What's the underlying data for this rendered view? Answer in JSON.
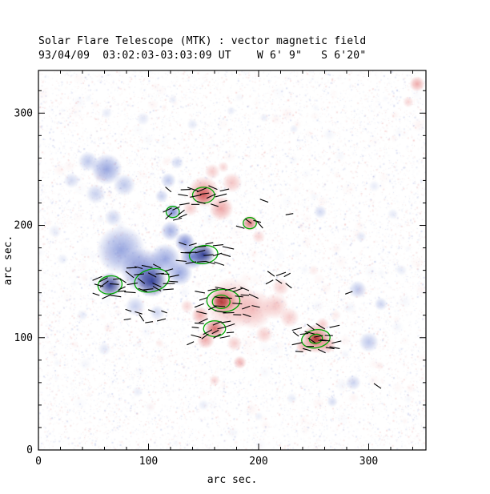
{
  "chart_data": {
    "type": "heatmap",
    "title": "Solar Flare Telescope (MTK) : vector magnetic field",
    "subtitle": "93/04/09  03:02:03-03:03:09 UT    W 6' 9\"   S 6'20\"",
    "xlabel": "arc sec.",
    "ylabel": "arc sec.",
    "x_range": [
      0,
      352
    ],
    "y_range": [
      0,
      338
    ],
    "x_ticks": [
      0,
      100,
      200,
      300
    ],
    "y_ticks": [
      0,
      100,
      200,
      300
    ],
    "minor_tick_step": 20,
    "units": "arc sec",
    "palette": {
      "blue_levels": [
        "#c6cfee",
        "#a3b1e4",
        "#7e90d8",
        "#4f63c4",
        "#27348e"
      ],
      "red_levels": [
        "#f5cccc",
        "#f0a9a9",
        "#e88888",
        "#d25252",
        "#a92b2b"
      ],
      "contour": "#00a800",
      "vector": "#000000",
      "frame": "#000000"
    },
    "region_format": "[x_arcsec, y_arcsec, radius_arcsec, level_index, alpha]",
    "blue_regions": [
      [
        62,
        250,
        14,
        2,
        0.8
      ],
      [
        45,
        257,
        9,
        1,
        0.7
      ],
      [
        78,
        236,
        10,
        1,
        0.7
      ],
      [
        52,
        228,
        9,
        1,
        0.6
      ],
      [
        30,
        240,
        7,
        1,
        0.5
      ],
      [
        68,
        207,
        8,
        1,
        0.55
      ],
      [
        126,
        256,
        6,
        1,
        0.5
      ],
      [
        75,
        178,
        22,
        2,
        0.8
      ],
      [
        95,
        160,
        20,
        3,
        0.75
      ],
      [
        65,
        147,
        11,
        4,
        0.9
      ],
      [
        103,
        150,
        14,
        4,
        0.9
      ],
      [
        115,
        170,
        14,
        2,
        0.8
      ],
      [
        128,
        158,
        12,
        2,
        0.8
      ],
      [
        133,
        185,
        9,
        3,
        0.75
      ],
      [
        140,
        172,
        11,
        3,
        0.8
      ],
      [
        150,
        174,
        10,
        4,
        0.95
      ],
      [
        120,
        195,
        9,
        2,
        0.7
      ],
      [
        122,
        212,
        7,
        3,
        0.75
      ],
      [
        118,
        240,
        7,
        1,
        0.7
      ],
      [
        112,
        226,
        6,
        1,
        0.6
      ],
      [
        88,
        128,
        9,
        1,
        0.6
      ],
      [
        108,
        122,
        7,
        1,
        0.5
      ],
      [
        290,
        143,
        8,
        1,
        0.7
      ],
      [
        300,
        96,
        9,
        1,
        0.7
      ],
      [
        311,
        130,
        6,
        1,
        0.55
      ],
      [
        286,
        60,
        7,
        1,
        0.55
      ],
      [
        267,
        43,
        5,
        1,
        0.45
      ],
      [
        256,
        212,
        6,
        1,
        0.5
      ],
      [
        293,
        190,
        5,
        0,
        0.5
      ],
      [
        322,
        210,
        5,
        0,
        0.45
      ],
      [
        305,
        235,
        5,
        0,
        0.4
      ],
      [
        330,
        160,
        5,
        0,
        0.4
      ],
      [
        60,
        90,
        6,
        0,
        0.5
      ],
      [
        40,
        120,
        5,
        0,
        0.45
      ],
      [
        15,
        195,
        6,
        0,
        0.4
      ],
      [
        22,
        170,
        5,
        0,
        0.4
      ],
      [
        95,
        295,
        6,
        0,
        0.5
      ],
      [
        140,
        290,
        5,
        0,
        0.5
      ],
      [
        62,
        300,
        5,
        0,
        0.45
      ],
      [
        175,
        302,
        4,
        0,
        0.45
      ],
      [
        122,
        312,
        4,
        0,
        0.4
      ],
      [
        205,
        296,
        4,
        0,
        0.4
      ],
      [
        232,
        286,
        4,
        0,
        0.4
      ],
      [
        150,
        40,
        5,
        0,
        0.4
      ],
      [
        230,
        46,
        5,
        0,
        0.4
      ],
      [
        200,
        30,
        4,
        0,
        0.35
      ],
      [
        90,
        52,
        5,
        0,
        0.4
      ]
    ],
    "red_regions": [
      [
        150,
        230,
        14,
        2,
        0.8
      ],
      [
        150,
        227,
        9,
        3,
        0.85
      ],
      [
        166,
        215,
        11,
        2,
        0.75
      ],
      [
        176,
        238,
        9,
        1,
        0.7
      ],
      [
        138,
        215,
        7,
        1,
        0.6
      ],
      [
        158,
        248,
        7,
        1,
        0.6
      ],
      [
        168,
        252,
        5,
        1,
        0.5
      ],
      [
        192,
        202,
        7,
        3,
        0.8
      ],
      [
        200,
        190,
        6,
        1,
        0.5
      ],
      [
        175,
        130,
        24,
        1,
        0.75
      ],
      [
        195,
        125,
        18,
        1,
        0.75
      ],
      [
        168,
        133,
        12,
        3,
        0.8
      ],
      [
        166,
        132,
        7,
        4,
        0.8
      ],
      [
        147,
        120,
        8,
        2,
        0.7
      ],
      [
        135,
        128,
        6,
        1,
        0.5
      ],
      [
        160,
        108,
        9,
        3,
        0.85
      ],
      [
        152,
        98,
        8,
        2,
        0.7
      ],
      [
        183,
        78,
        6,
        2,
        0.65
      ],
      [
        178,
        95,
        7,
        1,
        0.6
      ],
      [
        205,
        103,
        8,
        1,
        0.6
      ],
      [
        215,
        128,
        12,
        1,
        0.65
      ],
      [
        228,
        118,
        9,
        1,
        0.6
      ],
      [
        220,
        145,
        8,
        1,
        0.55
      ],
      [
        252,
        99,
        13,
        3,
        0.85
      ],
      [
        252,
        99,
        6,
        4,
        0.85
      ],
      [
        262,
        94,
        8,
        2,
        0.65
      ],
      [
        258,
        112,
        6,
        1,
        0.6
      ],
      [
        240,
        92,
        6,
        2,
        0.6
      ],
      [
        160,
        62,
        5,
        1,
        0.5
      ],
      [
        344,
        326,
        7,
        2,
        0.7
      ],
      [
        336,
        310,
        5,
        1,
        0.5
      ],
      [
        110,
        95,
        4,
        0,
        0.4
      ],
      [
        250,
        160,
        5,
        0,
        0.4
      ],
      [
        270,
        120,
        5,
        0,
        0.4
      ],
      [
        310,
        75,
        4,
        0,
        0.4
      ]
    ],
    "contour_format": "[x_arcsec, y_arcsec, rx_arcsec, ry_arcsec, rotation_deg]",
    "contours": [
      [
        65,
        147,
        11,
        8,
        -10
      ],
      [
        103,
        151,
        16,
        10,
        -15
      ],
      [
        150,
        174,
        13,
        8,
        -8
      ],
      [
        150,
        227,
        10,
        7,
        0
      ],
      [
        122,
        212,
        6,
        5,
        0
      ],
      [
        192,
        202,
        6,
        5,
        0
      ],
      [
        168,
        133,
        15,
        10,
        0
      ],
      [
        166,
        132,
        8,
        6,
        0
      ],
      [
        160,
        108,
        10,
        7,
        0
      ],
      [
        252,
        99,
        13,
        8,
        -10
      ],
      [
        252,
        99,
        6,
        4,
        -10
      ]
    ],
    "vector_cluster_format": "[cx, cy, cols, rows, dx, dy, angle_deg, angle_jitter_deg, length_arcsec]",
    "vector_clusters": [
      [
        150,
        227,
        5,
        3,
        9,
        7,
        0,
        25,
        9
      ],
      [
        124,
        210,
        3,
        2,
        8,
        7,
        30,
        20,
        8
      ],
      [
        152,
        175,
        6,
        3,
        8,
        7,
        0,
        20,
        9
      ],
      [
        105,
        152,
        6,
        4,
        8,
        7,
        -10,
        30,
        9
      ],
      [
        65,
        146,
        4,
        3,
        8,
        7,
        0,
        40,
        8
      ],
      [
        97,
        120,
        4,
        2,
        10,
        8,
        -20,
        40,
        7
      ],
      [
        172,
        132,
        7,
        4,
        8,
        7,
        0,
        25,
        9
      ],
      [
        160,
        107,
        5,
        3,
        8,
        6,
        10,
        30,
        8
      ],
      [
        252,
        99,
        6,
        4,
        7,
        6,
        -15,
        30,
        8
      ],
      [
        192,
        202,
        3,
        2,
        8,
        7,
        -30,
        20,
        8
      ],
      [
        218,
        152,
        3,
        2,
        9,
        8,
        0,
        40,
        8
      ]
    ],
    "vector_single_format": "[x, y, angle_deg, length_arcsec]",
    "vector_singles": [
      [
        308,
        57,
        -35,
        8
      ],
      [
        282,
        140,
        20,
        7
      ],
      [
        118,
        232,
        -40,
        7
      ],
      [
        205,
        222,
        -20,
        8
      ],
      [
        228,
        210,
        10,
        7
      ],
      [
        138,
        95,
        25,
        7
      ]
    ],
    "noise": {
      "seed": 7,
      "speckle_count": 15000,
      "patch_count": 260,
      "white_overlay_count": 7000
    }
  }
}
